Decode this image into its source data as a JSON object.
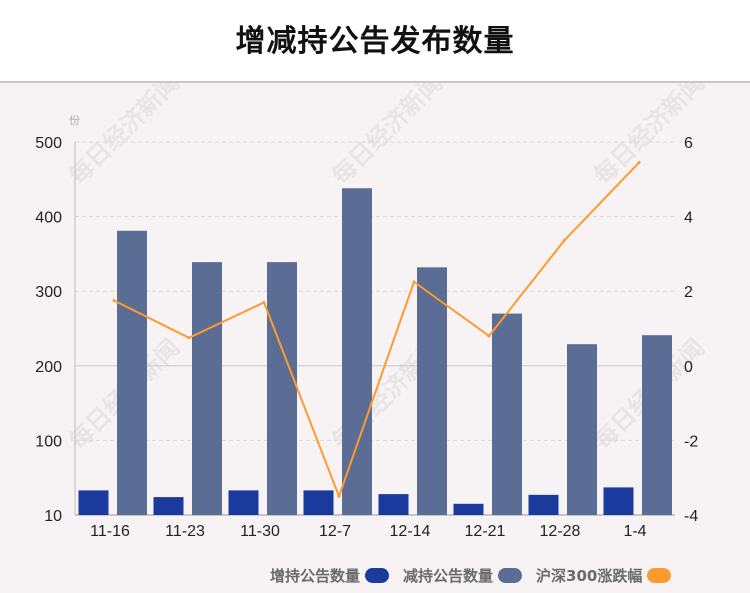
{
  "title": "增减持公告发布数量",
  "watermark": "每日经济新闻",
  "colors": {
    "increase": "#1a3a9e",
    "decrease": "#5b6d95",
    "index": "#ff9a2e",
    "grid": "#d9d9d9"
  },
  "chart_data": {
    "type": "bar",
    "categories": [
      "11-16",
      "11-23",
      "11-30",
      "12-7",
      "12-14",
      "12-21",
      "12-28",
      "1-4"
    ],
    "series": [
      {
        "name": "增持公告数量",
        "type": "bar",
        "axis": "left",
        "values": [
          33,
          24,
          33,
          33,
          28,
          15,
          27,
          37
        ]
      },
      {
        "name": "减持公告数量",
        "type": "bar",
        "axis": "left",
        "values": [
          381,
          339,
          339,
          438,
          332,
          270,
          229,
          241
        ]
      },
      {
        "name": "沪深300涨跌幅",
        "type": "line",
        "axis": "right",
        "values": [
          1.75,
          0.75,
          1.7,
          -3.5,
          2.25,
          0.8,
          3.35,
          5.45
        ]
      }
    ],
    "y_left": {
      "unit": "份",
      "ticks": [
        10,
        100,
        200,
        300,
        400,
        500
      ],
      "range": [
        0,
        500
      ]
    },
    "y_right": {
      "ticks": [
        6,
        4,
        2,
        0,
        -2,
        -4
      ],
      "range": [
        -4,
        6
      ]
    },
    "grid": true,
    "legend_position": "bottom"
  }
}
